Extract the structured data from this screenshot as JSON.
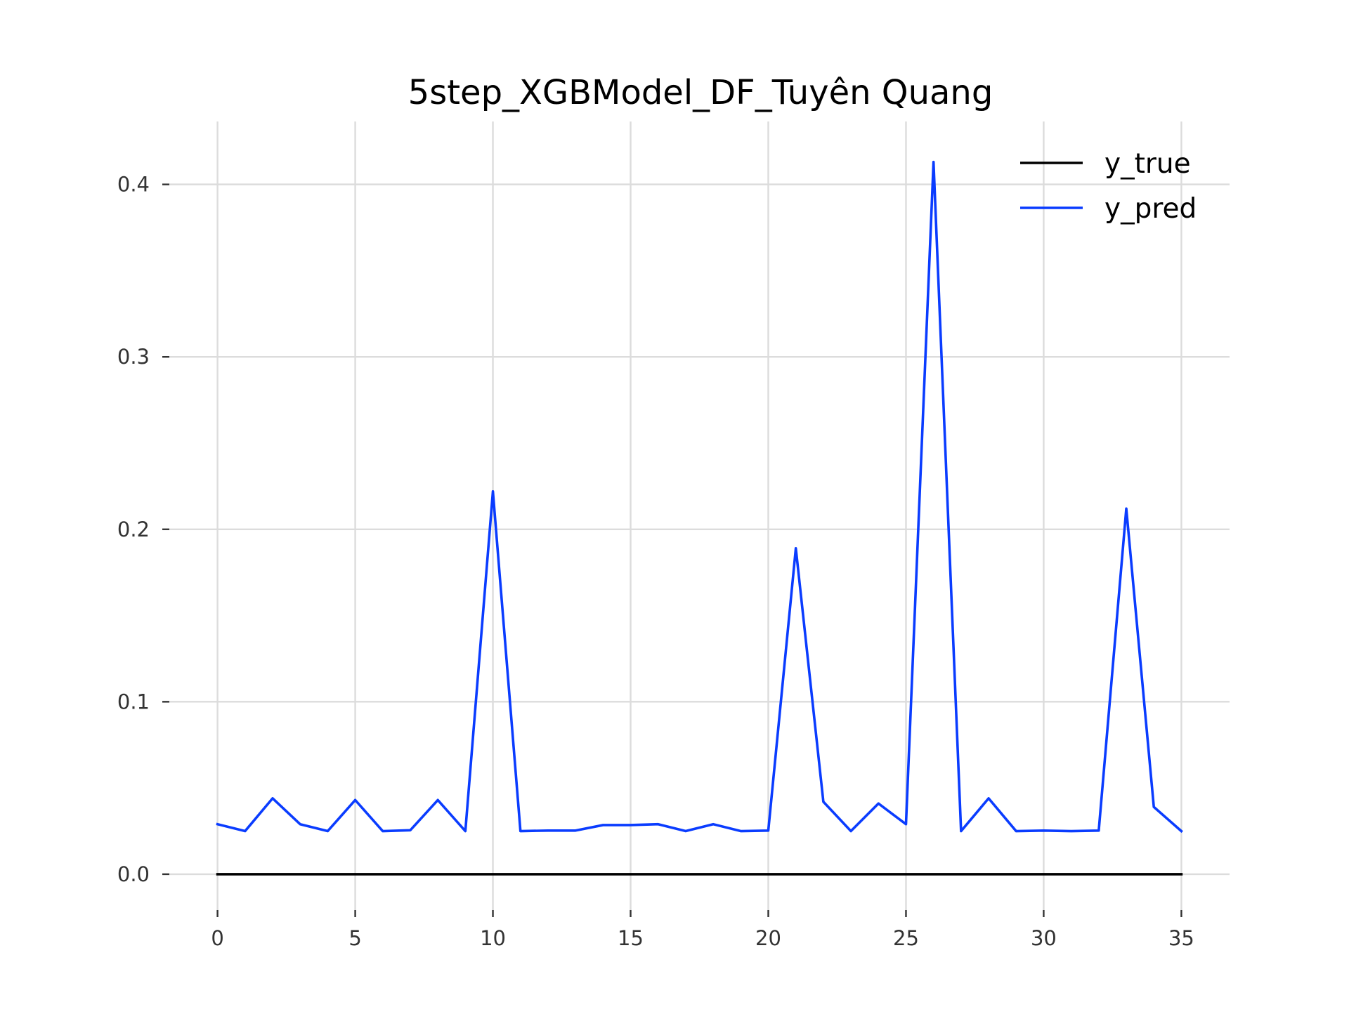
{
  "chart_data": {
    "type": "line",
    "title": "5step_XGBModel_DF_Tuyên Quang",
    "xlabel": "",
    "ylabel": "",
    "xlim": [
      -1.75,
      36.75
    ],
    "ylim": [
      -0.0208,
      0.4365
    ],
    "xticks": [
      0,
      5,
      10,
      15,
      20,
      25,
      30,
      35
    ],
    "xtick_labels": [
      "0",
      "5",
      "10",
      "15",
      "20",
      "25",
      "30",
      "35"
    ],
    "yticks": [
      0.0,
      0.1,
      0.2,
      0.3,
      0.4
    ],
    "ytick_labels": [
      "0.0",
      "0.1",
      "0.2",
      "0.3",
      "0.4"
    ],
    "grid": true,
    "legend_position": "top-right",
    "x": [
      0,
      1,
      2,
      3,
      4,
      5,
      6,
      7,
      8,
      9,
      10,
      11,
      12,
      13,
      14,
      15,
      16,
      17,
      18,
      19,
      20,
      21,
      22,
      23,
      24,
      25,
      26,
      27,
      28,
      29,
      30,
      31,
      32,
      33,
      34,
      35
    ],
    "series": [
      {
        "name": "y_true",
        "color": "#000000",
        "values": [
          0,
          0,
          0,
          0,
          0,
          0,
          0,
          0,
          0,
          0,
          0,
          0,
          0,
          0,
          0,
          0,
          0,
          0,
          0,
          0,
          0,
          0,
          0,
          0,
          0,
          0,
          0,
          0,
          0,
          0,
          0,
          0,
          0,
          0,
          0,
          0
        ]
      },
      {
        "name": "y_pred",
        "color": "#0a3cff",
        "values": [
          0.029,
          0.025,
          0.044,
          0.029,
          0.025,
          0.043,
          0.025,
          0.0255,
          0.043,
          0.025,
          0.222,
          0.025,
          0.0253,
          0.0253,
          0.0285,
          0.0285,
          0.029,
          0.025,
          0.029,
          0.025,
          0.0253,
          0.189,
          0.042,
          0.025,
          0.041,
          0.029,
          0.413,
          0.025,
          0.044,
          0.025,
          0.0253,
          0.025,
          0.0253,
          0.212,
          0.039,
          0.025
        ]
      }
    ]
  }
}
